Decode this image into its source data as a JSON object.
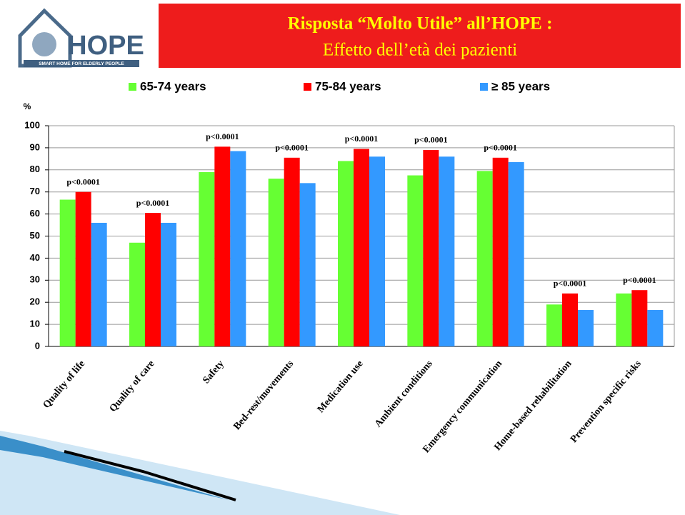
{
  "logo": {
    "title": "HOPE",
    "subtitle": "SMART HOME FOR ELDERLY PEOPLE"
  },
  "chart_data": {
    "type": "bar",
    "title": "Risposta “Molto Utile” all’HOPE :",
    "subtitle": "Effetto dell’età dei pazienti",
    "y_label": "%",
    "categories": [
      "Quality of life",
      "Quality of care",
      "Safety",
      "Bed-rest/movements",
      "Medication use",
      "Ambient conditions",
      "Emergency communication",
      "Home-based rehabilitation",
      "Prevention specific risks"
    ],
    "series": [
      {
        "name": "65-74 years",
        "color": "#66ff33",
        "values": [
          66.5,
          47,
          79,
          76,
          84,
          77.5,
          79.5,
          19,
          24
        ]
      },
      {
        "name": "75-84 years",
        "color": "#ff0000",
        "values": [
          70,
          60.5,
          90.5,
          85.5,
          89.5,
          89,
          85.5,
          24,
          25.5
        ]
      },
      {
        "name": "≥ 85 years",
        "color": "#3399ff",
        "values": [
          56,
          56,
          88.5,
          74,
          86,
          86,
          83.5,
          16.5,
          16.5
        ]
      }
    ],
    "annotations": [
      "p<0.0001",
      "p<0.0001",
      "p<0.0001",
      "p<0.0001",
      "p<0.0001",
      "p<0.0001",
      "p<0.0001",
      "p<0.0001",
      "p<0.0001"
    ],
    "ylim": [
      0,
      100
    ],
    "yticks": [
      0,
      10,
      20,
      30,
      40,
      50,
      60,
      70,
      80,
      90,
      100
    ],
    "grid": true,
    "legend": "top"
  }
}
